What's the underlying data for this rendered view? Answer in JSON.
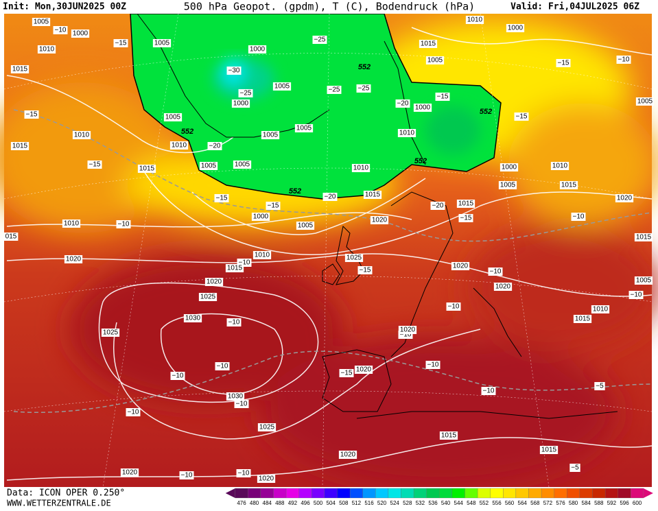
{
  "header": {
    "init": "Init: Mon,30JUN2025 00Z",
    "title": "500 hPa Geopot. (gpdm), T (C), Bodendruck (hPa)",
    "valid": "Valid: Fri,04JUL2025 06Z"
  },
  "footer": {
    "source": "Data: ICON OPER 0.250°",
    "site": "WWW.WETTERZENTRALE.DE"
  },
  "legend": {
    "ticks": [
      476,
      480,
      484,
      488,
      492,
      496,
      500,
      504,
      508,
      512,
      516,
      520,
      524,
      528,
      532,
      536,
      540,
      544,
      548,
      552,
      556,
      560,
      564,
      568,
      572,
      576,
      580,
      584,
      588,
      592,
      596,
      600
    ],
    "colors": [
      "#5a0a5a",
      "#780078",
      "#960096",
      "#c800c8",
      "#e600e6",
      "#b400ff",
      "#7800ff",
      "#3c00ff",
      "#0000ff",
      "#0050ff",
      "#0096ff",
      "#00c8ff",
      "#00e6e6",
      "#00dcb4",
      "#00d278",
      "#00c850",
      "#00dc3c",
      "#00f000",
      "#64ff00",
      "#dcff00",
      "#ffff00",
      "#ffe600",
      "#ffc800",
      "#ffaa00",
      "#ff8c00",
      "#ff6e00",
      "#f05000",
      "#dc3c00",
      "#c82800",
      "#b41414",
      "#a00a28",
      "#dc0a78"
    ]
  },
  "pressure_labels": [
    "1005",
    "1000",
    "1010",
    "1015",
    "1005",
    "1000",
    "1005",
    "1000",
    "1005",
    "1005",
    "1005",
    "1010",
    "1015",
    "1010",
    "1015",
    "1005",
    "1005",
    "1010",
    "1010",
    "1000",
    "1010",
    "1000",
    "1015",
    "1005",
    "1005",
    "1000",
    "1005",
    "1010",
    "1015",
    "1015",
    "1015",
    "1020",
    "1020",
    "1000",
    "1005",
    "1010",
    "015",
    "1020",
    "1010",
    "1015",
    "1020",
    "1025",
    "1025",
    "1020",
    "1020",
    "1015",
    "1005",
    "1030",
    "1025",
    "1015",
    "1010",
    "1020",
    "1020",
    "1030",
    "1025",
    "1015",
    "1015",
    "1020",
    "1020",
    "1020"
  ],
  "temperature_labels": [
    "−10",
    "−15",
    "−25",
    "−30",
    "−25",
    "−25",
    "−25",
    "−20",
    "−15",
    "−15",
    "−10",
    "−15",
    "−15",
    "−20",
    "−15",
    "−20",
    "−15",
    "−15",
    "−20",
    "−15",
    "−10",
    "−10",
    "−15",
    "−10",
    "−10",
    "−10",
    "−10",
    "−10",
    "−10",
    "−10",
    "−10",
    "−15",
    "−10",
    "−10",
    "−5",
    "−10",
    "−10",
    "−5",
    "−10",
    "−10"
  ],
  "geopotential_labels": [
    "552",
    "552",
    "552",
    "552",
    "552"
  ]
}
